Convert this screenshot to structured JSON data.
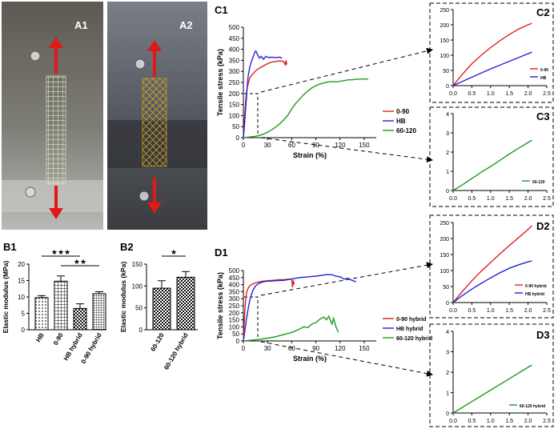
{
  "panel_labels": {
    "a1": "A1",
    "a2": "A2",
    "b1": "B1",
    "b2": "B2",
    "c1": "C1",
    "c2": "C2",
    "c3": "C3",
    "d1": "D1",
    "d2": "D2",
    "d3": "D3"
  },
  "colors": {
    "red": "#e02020",
    "blue": "#2222dd",
    "green": "#1f9a1f",
    "black": "#000000",
    "arrow": "#e01818"
  },
  "photos": {
    "a1": {
      "bg_top": "#5c5a52",
      "bg_bottom": "#b8bab6",
      "mesh": "#d9e3b8",
      "arrows": "up/down"
    },
    "a2": {
      "bg_top": "#7a7f86",
      "bg_bottom": "#3b3d40",
      "mesh": "#d4a520",
      "arrows": "up/down"
    }
  },
  "chart_data": [
    {
      "id": "B1",
      "type": "bar",
      "ylabel": "Elastic modulus (MPa)",
      "ylim": [
        0,
        20
      ],
      "yticks": [
        "0",
        "5",
        "10",
        "15",
        "20"
      ],
      "categories": [
        "HB",
        "0-90",
        "HB hybrid",
        "0-90 hybrid"
      ],
      "values": [
        9.8,
        14.8,
        6.5,
        11.0
      ],
      "errors": [
        0.6,
        1.6,
        1.4,
        0.6
      ],
      "significance": [
        {
          "from": 0,
          "to": 2,
          "label": "★★★"
        },
        {
          "from": 1,
          "to": 3,
          "label": "★★"
        }
      ]
    },
    {
      "id": "B2",
      "type": "bar",
      "ylabel": "Elastic modulus (kPa)",
      "ylim": [
        0,
        150
      ],
      "yticks": [
        "0",
        "50",
        "100",
        "150"
      ],
      "categories": [
        "60-120",
        "60-120 hybrid"
      ],
      "values": [
        95,
        120
      ],
      "errors": [
        17,
        13
      ],
      "significance": [
        {
          "from": 0,
          "to": 1,
          "label": "★"
        }
      ]
    },
    {
      "id": "C1",
      "type": "line",
      "xlabel": "Strain (%)",
      "ylabel": "Tensile stress (kPa)",
      "xlim": [
        0,
        165
      ],
      "ylim": [
        0,
        500
      ],
      "xticks": [
        "0",
        "30",
        "60",
        "90",
        "120",
        "150"
      ],
      "yticks": [
        "0",
        "50",
        "100",
        "150",
        "200",
        "250",
        "300",
        "350",
        "400",
        "450",
        "500"
      ],
      "legend": [
        "0-90",
        "HB",
        "60-120"
      ],
      "series": [
        {
          "name": "0-90",
          "color": "red",
          "x": [
            0,
            1,
            2,
            3,
            5,
            8,
            12,
            16,
            20,
            25,
            30,
            35,
            40,
            45,
            50,
            52,
            53,
            54
          ],
          "y": [
            0,
            60,
            120,
            175,
            230,
            270,
            290,
            305,
            315,
            325,
            335,
            342,
            345,
            348,
            345,
            330,
            350,
            330
          ]
        },
        {
          "name": "HB",
          "color": "blue",
          "x": [
            0,
            1,
            2,
            3,
            4,
            5,
            6,
            8,
            10,
            12,
            14,
            15,
            16,
            17,
            18,
            20,
            22,
            25,
            28,
            32,
            35,
            40,
            45,
            48
          ],
          "y": [
            0,
            40,
            90,
            140,
            190,
            240,
            280,
            320,
            345,
            365,
            385,
            392,
            390,
            380,
            372,
            360,
            368,
            355,
            368,
            362,
            365,
            362,
            365,
            360
          ]
        },
        {
          "name": "60-120",
          "color": "green",
          "x": [
            0,
            5,
            10,
            15,
            20,
            25,
            30,
            35,
            40,
            45,
            50,
            55,
            60,
            65,
            70,
            75,
            80,
            85,
            90,
            95,
            100,
            105,
            110,
            115,
            120,
            125,
            130,
            135,
            140,
            145,
            150,
            155
          ],
          "y": [
            0,
            2,
            4,
            6,
            10,
            16,
            25,
            35,
            48,
            62,
            80,
            100,
            130,
            155,
            175,
            195,
            212,
            225,
            235,
            243,
            248,
            252,
            254,
            253,
            255,
            258,
            262,
            262,
            265,
            265,
            266,
            265
          ]
        }
      ]
    },
    {
      "id": "C2",
      "type": "line",
      "xlim": [
        0,
        2.5
      ],
      "ylim": [
        0,
        250
      ],
      "xticks": [
        "0.0",
        "0.5",
        "1.0",
        "1.5",
        "2.0",
        "2.5"
      ],
      "yticks": [
        "0",
        "50",
        "100",
        "150",
        "200",
        "250"
      ],
      "legend": [
        "0-90",
        "HB"
      ],
      "series": [
        {
          "name": "0-90",
          "color": "red",
          "x": [
            0,
            0.25,
            0.5,
            0.75,
            1.0,
            1.25,
            1.5,
            1.75,
            2.0,
            2.1
          ],
          "y": [
            0,
            38,
            72,
            100,
            125,
            148,
            168,
            186,
            200,
            205
          ]
        },
        {
          "name": "HB",
          "color": "blue",
          "x": [
            0,
            0.5,
            1.0,
            1.5,
            2.0,
            2.1
          ],
          "y": [
            0,
            28,
            55,
            80,
            105,
            110
          ]
        }
      ]
    },
    {
      "id": "C3",
      "type": "line",
      "xlim": [
        0,
        2.5
      ],
      "ylim": [
        0,
        4
      ],
      "xticks": [
        "0.0",
        "0.5",
        "1.0",
        "1.5",
        "2.0",
        "2.5"
      ],
      "yticks": [
        "0",
        "1",
        "2",
        "3",
        "4"
      ],
      "legend": [
        "60-120"
      ],
      "series": [
        {
          "name": "60-120",
          "color": "green",
          "x": [
            0,
            0.25,
            0.5,
            0.75,
            1.0,
            1.25,
            1.5,
            1.75,
            2.0,
            2.1
          ],
          "y": [
            0,
            0.3,
            0.62,
            0.95,
            1.25,
            1.57,
            1.9,
            2.2,
            2.5,
            2.62
          ]
        }
      ]
    },
    {
      "id": "D1",
      "type": "line",
      "xlabel": "Strain (%)",
      "ylabel": "Tensile stress (kPa)",
      "xlim": [
        0,
        165
      ],
      "ylim": [
        0,
        500
      ],
      "xticks": [
        "0",
        "30",
        "60",
        "90",
        "120",
        "150"
      ],
      "yticks": [
        "0",
        "50",
        "100",
        "150",
        "200",
        "250",
        "300",
        "350",
        "400",
        "450",
        "500"
      ],
      "legend": [
        "0-90 hybrid",
        "HB hybrid",
        "60-120 hybrid"
      ],
      "series": [
        {
          "name": "0-90 hybrid",
          "color": "red",
          "x": [
            0,
            1,
            2,
            3,
            4,
            6,
            8,
            10,
            13,
            16,
            20,
            25,
            30,
            35,
            40,
            45,
            50,
            55,
            60,
            61,
            62,
            63
          ],
          "y": [
            0,
            120,
            230,
            300,
            345,
            375,
            392,
            400,
            408,
            415,
            420,
            425,
            428,
            430,
            432,
            435,
            435,
            438,
            440,
            380,
            430,
            400
          ]
        },
        {
          "name": "HB hybrid",
          "color": "blue",
          "x": [
            0,
            2,
            4,
            6,
            8,
            10,
            12,
            15,
            18,
            22,
            25,
            30,
            35,
            40,
            50,
            60,
            70,
            80,
            90,
            100,
            105,
            110,
            115,
            120,
            125,
            130,
            135,
            140
          ],
          "y": [
            0,
            80,
            160,
            230,
            290,
            330,
            360,
            390,
            405,
            415,
            420,
            425,
            425,
            428,
            430,
            440,
            450,
            455,
            460,
            468,
            472,
            470,
            460,
            455,
            440,
            445,
            430,
            420
          ]
        },
        {
          "name": "60-120 hybrid",
          "color": "green",
          "x": [
            0,
            10,
            20,
            30,
            40,
            50,
            55,
            60,
            65,
            70,
            75,
            80,
            85,
            90,
            95,
            100,
            103,
            106,
            110,
            112,
            115,
            118
          ],
          "y": [
            0,
            5,
            12,
            20,
            30,
            45,
            52,
            60,
            72,
            85,
            100,
            95,
            120,
            130,
            155,
            170,
            150,
            175,
            120,
            160,
            100,
            60
          ]
        }
      ]
    },
    {
      "id": "D2",
      "type": "line",
      "xlim": [
        0,
        2.5
      ],
      "ylim": [
        0,
        250
      ],
      "xticks": [
        "0.0",
        "0.5",
        "1.0",
        "1.5",
        "2.0",
        "2.5"
      ],
      "yticks": [
        "0",
        "50",
        "100",
        "150",
        "200",
        "250"
      ],
      "legend": [
        "0-90 hybrid",
        "HB hybrid"
      ],
      "series": [
        {
          "name": "0-90 hybrid",
          "color": "red",
          "x": [
            0,
            0.25,
            0.5,
            0.75,
            1.0,
            1.25,
            1.5,
            1.75,
            2.0,
            2.1
          ],
          "y": [
            0,
            35,
            68,
            98,
            125,
            152,
            178,
            203,
            228,
            240
          ]
        },
        {
          "name": "HB hybrid",
          "color": "blue",
          "x": [
            0,
            0.25,
            0.5,
            0.75,
            1.0,
            1.25,
            1.5,
            1.75,
            2.0,
            2.1
          ],
          "y": [
            0,
            22,
            42,
            60,
            77,
            93,
            107,
            118,
            127,
            130
          ]
        }
      ]
    },
    {
      "id": "D3",
      "type": "line",
      "xlim": [
        0,
        2.5
      ],
      "ylim": [
        0,
        4
      ],
      "xticks": [
        "0.0",
        "0.5",
        "1.0",
        "1.5",
        "2.0",
        "2.5"
      ],
      "yticks": [
        "0",
        "1",
        "2",
        "3",
        "4"
      ],
      "legend": [
        "60-120 hybrid"
      ],
      "series": [
        {
          "name": "60-120 hybrid",
          "color": "green",
          "x": [
            0,
            0.25,
            0.5,
            0.75,
            1.0,
            1.25,
            1.5,
            1.75,
            2.0,
            2.1
          ],
          "y": [
            0,
            0.28,
            0.56,
            0.84,
            1.12,
            1.4,
            1.68,
            1.96,
            2.24,
            2.35
          ]
        }
      ]
    }
  ]
}
